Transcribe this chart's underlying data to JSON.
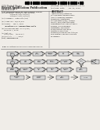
{
  "page_bg": "#f0ede8",
  "text_color": "#1a1a1a",
  "box_fill": "#d8d8d8",
  "box_edge": "#444444",
  "arrow_color": "#222222",
  "barcode_color": "#000000",
  "line_color": "#666666",
  "header_bg": "#e8e5e0"
}
